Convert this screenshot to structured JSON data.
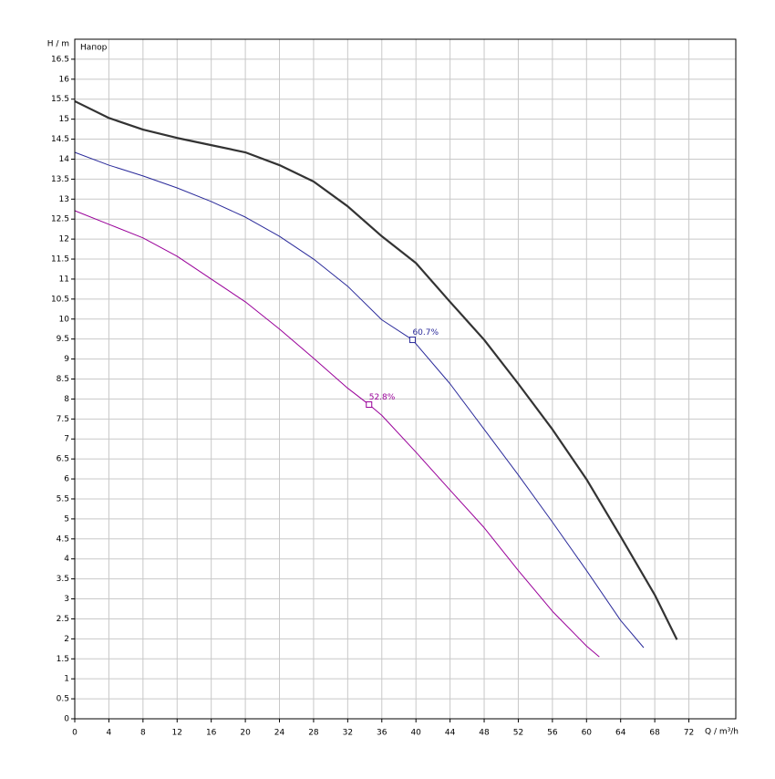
{
  "chart_data": {
    "type": "line",
    "title": "Напор",
    "x_label": "Q / m³/h",
    "y_label": "H / m",
    "xlim": [
      0,
      77.5
    ],
    "ylim": [
      0,
      17
    ],
    "xticks": [
      0,
      4,
      8,
      12,
      16,
      20,
      24,
      28,
      32,
      36,
      40,
      44,
      48,
      52,
      56,
      60,
      64,
      68,
      72
    ],
    "yticks": [
      0,
      0.5,
      1,
      1.5,
      2,
      2.5,
      3,
      3.5,
      4,
      4.5,
      5,
      5.5,
      6,
      6.5,
      7,
      7.5,
      8,
      8.5,
      9,
      9.5,
      10,
      10.5,
      11,
      11.5,
      12,
      12.5,
      13,
      13.5,
      14,
      14.5,
      15,
      15.5,
      16,
      16.5
    ],
    "grid": true,
    "series": [
      {
        "color": "#333333",
        "width": 2.2,
        "x": [
          0,
          4,
          8,
          12,
          16,
          20,
          24,
          28,
          32,
          36,
          40,
          44,
          48,
          52,
          56,
          60,
          64,
          68,
          70.6
        ],
        "values": [
          15.45,
          15.03,
          14.74,
          14.53,
          14.35,
          14.17,
          13.85,
          13.44,
          12.82,
          12.07,
          11.4,
          10.43,
          9.48,
          8.38,
          7.24,
          5.99,
          4.56,
          3.1,
          1.98
        ]
      },
      {
        "color": "#2a2a9a",
        "width": 1,
        "x": [
          0,
          4,
          8,
          12,
          16,
          20,
          24,
          28,
          32,
          36,
          39.6,
          44,
          48,
          52,
          56,
          60,
          64,
          66.7
        ],
        "values": [
          14.17,
          13.85,
          13.58,
          13.28,
          12.94,
          12.55,
          12.07,
          11.5,
          10.82,
          9.98,
          9.48,
          8.38,
          7.24,
          6.1,
          4.92,
          3.71,
          2.46,
          1.78
        ]
      },
      {
        "color": "#990099",
        "width": 1,
        "x": [
          0,
          4,
          8,
          12,
          16,
          20,
          24,
          28,
          32,
          34.5,
          36,
          40,
          44,
          48,
          52,
          56,
          60,
          61.5
        ],
        "values": [
          12.71,
          12.37,
          12.03,
          11.57,
          11.0,
          10.43,
          9.75,
          9.02,
          8.27,
          7.86,
          7.59,
          6.67,
          5.72,
          4.78,
          3.71,
          2.69,
          1.82,
          1.55
        ]
      }
    ],
    "annotations": [
      {
        "text": "60.7%",
        "x": 39.6,
        "y": 9.48,
        "color": "#2a2a9a"
      },
      {
        "text": "52.8%",
        "x": 34.5,
        "y": 7.86,
        "color": "#990099"
      }
    ]
  }
}
